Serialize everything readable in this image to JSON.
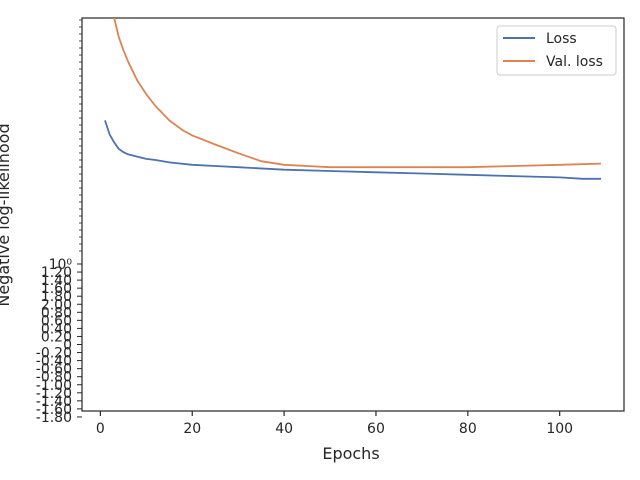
{
  "chart_data": {
    "type": "line",
    "title": "",
    "xlabel": "Epochs",
    "ylabel": "Negative log-likelihood",
    "xlim": [
      -4,
      114
    ],
    "x_ticks": [
      "0",
      "20",
      "40",
      "60",
      "80",
      "100"
    ],
    "x_tick_values": [
      0,
      20,
      40,
      60,
      80,
      100
    ],
    "y_tick_labels": [
      "10⁰",
      "1.20",
      "1.40",
      "1.60",
      "1.80",
      "2.00",
      "0.80",
      "0.60",
      "0.40",
      "0.20",
      "0",
      "-0.20",
      "-0.40",
      "-0.60",
      "-0.80",
      "-1.00",
      "-1.20",
      "-1.40",
      "-1.60",
      "-1.80"
    ],
    "y_scale": "overlapping log-scale tick labels (largely illegible)",
    "grid": false,
    "legend_position": "top-right",
    "series": [
      {
        "name": "Loss",
        "color": "#4c72b0",
        "x": [
          1,
          2,
          3,
          4,
          5,
          6,
          8,
          10,
          12,
          15,
          20,
          25,
          30,
          40,
          50,
          60,
          70,
          80,
          90,
          100,
          105,
          109
        ],
        "values": [
          1.63,
          1.48,
          1.4,
          1.34,
          1.31,
          1.29,
          1.27,
          1.25,
          1.24,
          1.22,
          1.2,
          1.19,
          1.18,
          1.16,
          1.15,
          1.14,
          1.13,
          1.12,
          1.11,
          1.1,
          1.09,
          1.09
        ]
      },
      {
        "name": "Val. loss",
        "color": "#dd8452",
        "x": [
          1,
          2,
          3,
          4,
          5,
          6,
          8,
          10,
          12,
          15,
          18,
          20,
          25,
          30,
          35,
          40,
          45,
          50,
          60,
          70,
          80,
          90,
          100,
          109
        ],
        "values": [
          5.2,
          4.0,
          3.3,
          2.9,
          2.65,
          2.45,
          2.15,
          1.95,
          1.8,
          1.63,
          1.52,
          1.47,
          1.38,
          1.3,
          1.23,
          1.2,
          1.19,
          1.18,
          1.18,
          1.18,
          1.18,
          1.19,
          1.2,
          1.21
        ]
      }
    ]
  }
}
